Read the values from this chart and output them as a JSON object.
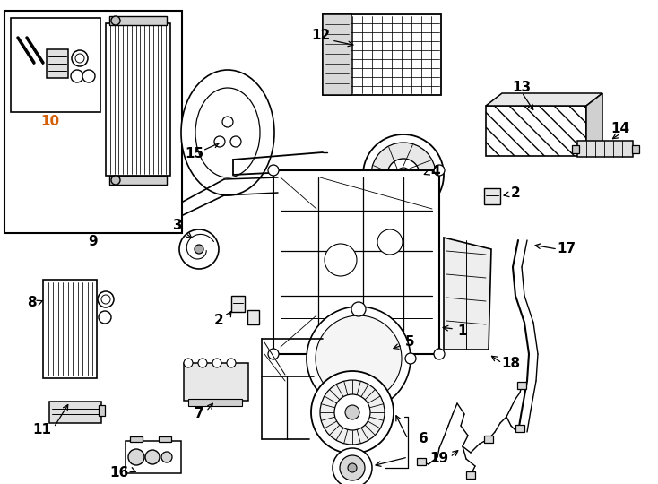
{
  "bg_color": "#ffffff",
  "line_color": "#000000",
  "figsize": [
    7.34,
    5.4
  ],
  "dpi": 100,
  "label10_color": "#d4600a"
}
